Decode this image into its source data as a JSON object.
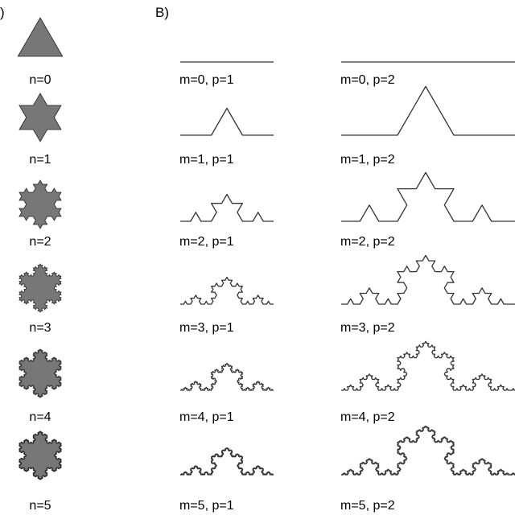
{
  "panel_labels": {
    "a": ")",
    "b": "B)"
  },
  "snowflakes": {
    "labels": [
      "n=0",
      "n=1",
      "n=2",
      "n=3",
      "n=4",
      "n=5"
    ],
    "fill_color": "#777777"
  },
  "curves": {
    "labels_p1": [
      "m=0, p=1",
      "m=1, p=1",
      "m=2, p=1",
      "m=3, p=1",
      "m=4, p=1",
      "m=5, p=1"
    ],
    "labels_p2": [
      "m=0, p=2",
      "m=1, p=2",
      "m=2, p=2",
      "m=3, p=2",
      "m=4, p=2",
      "m=5, p=2"
    ],
    "stroke_color": "#333333"
  }
}
